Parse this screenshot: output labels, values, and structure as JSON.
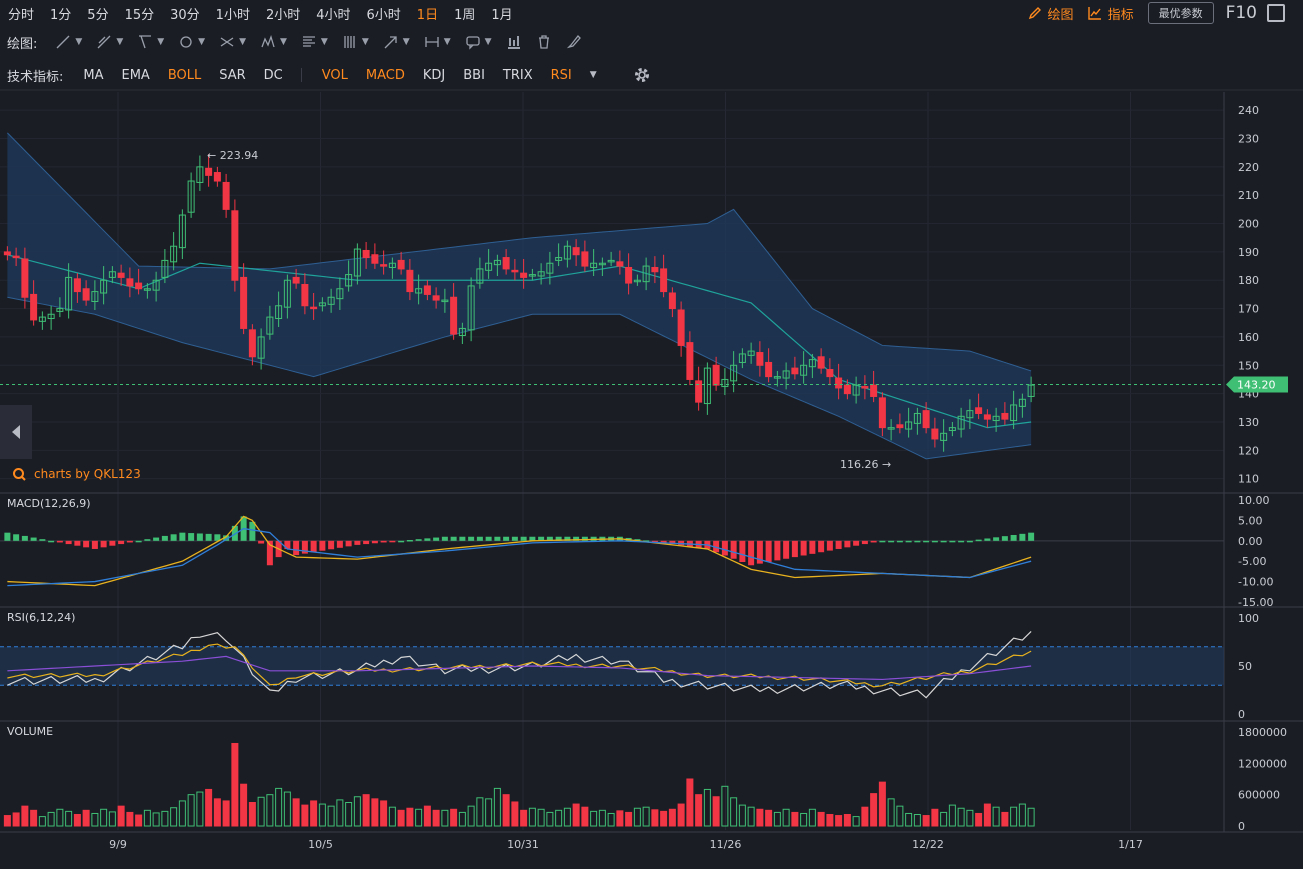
{
  "periods": [
    {
      "label": "分时",
      "active": false
    },
    {
      "label": "1分",
      "active": false
    },
    {
      "label": "5分",
      "active": false
    },
    {
      "label": "15分",
      "active": false
    },
    {
      "label": "30分",
      "active": false
    },
    {
      "label": "1小时",
      "active": false
    },
    {
      "label": "2小时",
      "active": false
    },
    {
      "label": "4小时",
      "active": false
    },
    {
      "label": "6小时",
      "active": false
    },
    {
      "label": "1日",
      "active": true
    },
    {
      "label": "1周",
      "active": false
    },
    {
      "label": "1月",
      "active": false
    }
  ],
  "topright": {
    "draw": "绘图",
    "indicator": "指标",
    "params": "最优参数",
    "f10": "F10"
  },
  "drawbar": {
    "label": "绘图:"
  },
  "indbar": {
    "label": "技术指标:",
    "main": [
      {
        "label": "MA",
        "on": false
      },
      {
        "label": "EMA",
        "on": false
      },
      {
        "label": "BOLL",
        "on": true
      },
      {
        "label": "SAR",
        "on": false
      },
      {
        "label": "DC",
        "on": false
      }
    ],
    "sub": [
      {
        "label": "VOL",
        "on": true
      },
      {
        "label": "MACD",
        "on": true
      },
      {
        "label": "KDJ",
        "on": false
      },
      {
        "label": "BBI",
        "on": false
      },
      {
        "label": "TRIX",
        "on": false
      },
      {
        "label": "RSI",
        "on": true
      }
    ]
  },
  "brand": "charts by QKL123",
  "colors": {
    "up": "#3fbf74",
    "down": "#f23645",
    "accent": "#ff8a1e",
    "bg": "#1b1d25",
    "band": "#1f3a5c",
    "mid": "#1fa39a",
    "price_tag": "#3fbf74",
    "dif": "#2f7fd9",
    "dea": "#e8b21e",
    "rsi6": "#d6d6d6",
    "rsi12": "#e8b21e",
    "rsi24": "#8a4fd6"
  },
  "chart_data": [
    {
      "type": "candlestick",
      "panel": "price",
      "indicator": "BOLL",
      "x_ticks": [
        "9/9",
        "10/5",
        "10/31",
        "11/26",
        "12/22",
        "1/17"
      ],
      "y_ticks": [
        110,
        120,
        130,
        140,
        150,
        160,
        170,
        180,
        190,
        200,
        210,
        220,
        230,
        240
      ],
      "ylim": [
        106,
        245
      ],
      "last_price": "143.20",
      "high_marker": "223.94",
      "low_marker": "116.26",
      "close": [
        189,
        188,
        174,
        166,
        167,
        168,
        170,
        181,
        176,
        173,
        176,
        180,
        183,
        181,
        178,
        177,
        177,
        180,
        187,
        192,
        203,
        215,
        220,
        217,
        215,
        205,
        180,
        163,
        153,
        160,
        167,
        171,
        180,
        179,
        171,
        170,
        172,
        174,
        177,
        182,
        191,
        188,
        186,
        185,
        186,
        184,
        176,
        177,
        175,
        173,
        173,
        161,
        163,
        178,
        184,
        186,
        187,
        184,
        183,
        181,
        182,
        183,
        186,
        188,
        192,
        189,
        185,
        186,
        186,
        187,
        185,
        179,
        180,
        185,
        183,
        176,
        170,
        157,
        145,
        137,
        149,
        143,
        145,
        150,
        154,
        155,
        150,
        146,
        146,
        148,
        147,
        150,
        152,
        149,
        146,
        142,
        140,
        143,
        142,
        139,
        128,
        128,
        128,
        130,
        133,
        128,
        124,
        126,
        128,
        132,
        134,
        133,
        131,
        132,
        131,
        136,
        138,
        143
      ],
      "bands": {
        "upper_keypoints": [
          [
            0,
            232
          ],
          [
            15,
            185
          ],
          [
            30,
            184
          ],
          [
            60,
            195
          ],
          [
            80,
            200
          ],
          [
            83,
            205
          ],
          [
            92,
            170
          ],
          [
            100,
            157
          ],
          [
            110,
            155
          ],
          [
            117,
            148
          ]
        ],
        "middle_keypoints": [
          [
            0,
            189
          ],
          [
            15,
            177
          ],
          [
            22,
            186
          ],
          [
            40,
            180
          ],
          [
            60,
            180
          ],
          [
            70,
            185
          ],
          [
            85,
            172
          ],
          [
            95,
            145
          ],
          [
            105,
            135
          ],
          [
            112,
            128
          ],
          [
            117,
            130
          ]
        ],
        "lower_keypoints": [
          [
            0,
            174
          ],
          [
            10,
            168
          ],
          [
            20,
            158
          ],
          [
            35,
            146
          ],
          [
            50,
            160
          ],
          [
            60,
            168
          ],
          [
            70,
            168
          ],
          [
            85,
            145
          ],
          [
            95,
            132
          ],
          [
            105,
            117
          ],
          [
            117,
            122
          ]
        ]
      }
    },
    {
      "type": "bar+line",
      "panel": "macd",
      "label": "MACD(12,26,9)",
      "y_ticks": [
        "10.00",
        "5.00",
        "0.00",
        "-5.00",
        "-10.00",
        "-15.00"
      ],
      "ylim": [
        -16,
        11
      ],
      "dif_keypoints": [
        [
          0,
          -10
        ],
        [
          10,
          -11
        ],
        [
          20,
          -5
        ],
        [
          25,
          1
        ],
        [
          27,
          6
        ],
        [
          28,
          5
        ],
        [
          30,
          -1
        ],
        [
          33,
          -4
        ],
        [
          40,
          -4.5
        ],
        [
          50,
          -2
        ],
        [
          60,
          0
        ],
        [
          70,
          0.5
        ],
        [
          80,
          -2
        ],
        [
          85,
          -7
        ],
        [
          90,
          -9
        ],
        [
          100,
          -8
        ],
        [
          110,
          -9
        ],
        [
          117,
          -4
        ]
      ],
      "dea_keypoints": [
        [
          0,
          -11
        ],
        [
          10,
          -10
        ],
        [
          20,
          -6
        ],
        [
          24,
          -1
        ],
        [
          27,
          3
        ],
        [
          30,
          2
        ],
        [
          32,
          -2
        ],
        [
          40,
          -4
        ],
        [
          50,
          -2.5
        ],
        [
          60,
          -0.5
        ],
        [
          70,
          0
        ],
        [
          80,
          -1
        ],
        [
          85,
          -4
        ],
        [
          90,
          -7
        ],
        [
          100,
          -8
        ],
        [
          110,
          -9
        ],
        [
          117,
          -5
        ]
      ]
    },
    {
      "type": "line",
      "panel": "rsi",
      "label": "RSI(6,12,24)",
      "y_ticks": [
        "100",
        "50",
        "0"
      ],
      "ylim": [
        0,
        100
      ],
      "bounds": [
        70,
        30
      ],
      "series_keypoints": {
        "rsi6": [
          [
            0,
            35
          ],
          [
            10,
            35
          ],
          [
            20,
            70
          ],
          [
            22,
            85
          ],
          [
            25,
            80
          ],
          [
            30,
            20
          ],
          [
            33,
            38
          ],
          [
            40,
            45
          ],
          [
            45,
            60
          ],
          [
            50,
            45
          ],
          [
            60,
            50
          ],
          [
            65,
            60
          ],
          [
            70,
            55
          ],
          [
            75,
            35
          ],
          [
            85,
            25
          ],
          [
            95,
            30
          ],
          [
            100,
            25
          ],
          [
            105,
            20
          ],
          [
            110,
            50
          ],
          [
            117,
            85
          ]
        ],
        "rsi12": [
          [
            0,
            40
          ],
          [
            10,
            40
          ],
          [
            20,
            62
          ],
          [
            23,
            72
          ],
          [
            26,
            70
          ],
          [
            30,
            28
          ],
          [
            33,
            40
          ],
          [
            40,
            45
          ],
          [
            50,
            48
          ],
          [
            60,
            52
          ],
          [
            70,
            50
          ],
          [
            80,
            40
          ],
          [
            90,
            38
          ],
          [
            100,
            30
          ],
          [
            110,
            45
          ],
          [
            117,
            65
          ]
        ],
        "rsi24": [
          [
            0,
            45
          ],
          [
            20,
            55
          ],
          [
            25,
            60
          ],
          [
            30,
            45
          ],
          [
            40,
            45
          ],
          [
            60,
            50
          ],
          [
            70,
            48
          ],
          [
            80,
            40
          ],
          [
            100,
            36
          ],
          [
            110,
            42
          ],
          [
            117,
            50
          ]
        ]
      }
    },
    {
      "type": "bar",
      "panel": "volume",
      "label": "VOLUME",
      "y_ticks": [
        "1800000",
        "1200000",
        "600000",
        "0"
      ],
      "ylim": [
        0,
        1800000
      ],
      "volume": [
        200000,
        250000,
        380000,
        300000,
        180000,
        260000,
        320000,
        280000,
        220000,
        300000,
        240000,
        320000,
        270000,
        380000,
        260000,
        210000,
        300000,
        250000,
        280000,
        350000,
        480000,
        600000,
        650000,
        700000,
        520000,
        480000,
        1580000,
        800000,
        450000,
        550000,
        600000,
        720000,
        650000,
        520000,
        400000,
        480000,
        420000,
        380000,
        500000,
        450000,
        560000,
        600000,
        520000,
        480000,
        360000,
        300000,
        340000,
        320000,
        380000,
        300000,
        300000,
        320000,
        260000,
        380000,
        540000,
        520000,
        720000,
        600000,
        460000,
        300000,
        340000,
        320000,
        260000,
        300000,
        340000,
        420000,
        360000,
        280000,
        300000,
        240000,
        290000,
        260000,
        340000,
        360000,
        310000,
        280000,
        320000,
        420000,
        900000,
        600000,
        700000,
        560000,
        760000,
        540000,
        400000,
        360000,
        320000,
        300000,
        260000,
        320000,
        260000,
        240000,
        320000,
        260000,
        220000,
        200000,
        220000,
        180000,
        360000,
        620000,
        840000,
        520000,
        380000,
        240000,
        220000,
        200000,
        320000,
        260000,
        400000,
        340000,
        300000,
        240000,
        420000,
        360000,
        260000,
        360000,
        420000,
        340000
      ]
    }
  ]
}
